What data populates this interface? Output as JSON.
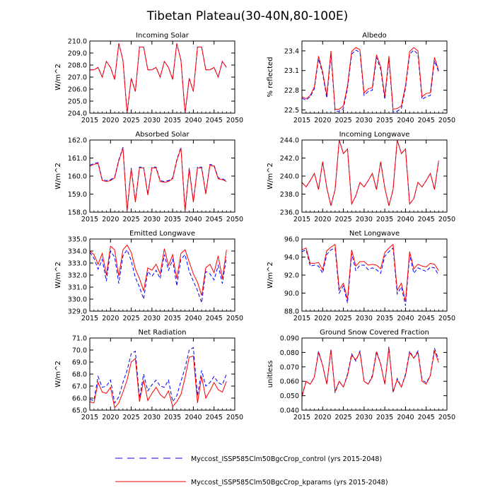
{
  "figure_title": "Tibetan Plateau(30-40N,80-100E)",
  "legend": {
    "control_label": "Myccost_ISSP585Clm50BgcCrop_control (yrs 2015-2048)",
    "kparams_label": "Myccost_ISSP585Clm50BgcCrop_kparams (yrs 2015-2048)"
  },
  "colors": {
    "control": "#0000ff",
    "kparams": "#ff0000",
    "axis": "#000000"
  },
  "chart_data": [
    {
      "type": "line",
      "title": "Incoming Solar",
      "ylabel": "W/m^2",
      "xlim": [
        2015,
        2050
      ],
      "xticks": [
        2015,
        2020,
        2025,
        2030,
        2035,
        2040,
        2045,
        2050
      ],
      "ylim": [
        204.0,
        210.0
      ],
      "yticks": [
        "204.0",
        "205.0",
        "206.0",
        "207.0",
        "208.0",
        "209.0",
        "210.0"
      ],
      "x": [
        2015,
        2016,
        2017,
        2018,
        2019,
        2020,
        2021,
        2022,
        2023,
        2024,
        2025,
        2026,
        2027,
        2028,
        2029,
        2030,
        2031,
        2032,
        2033,
        2034,
        2035,
        2036,
        2037,
        2038,
        2039,
        2040,
        2041,
        2042,
        2043,
        2044,
        2045,
        2046,
        2047,
        2048
      ],
      "series": [
        {
          "name": "control",
          "values": [
            207.6,
            207.6,
            207.8,
            207.0,
            208.3,
            207.8,
            206.8,
            209.8,
            208.4,
            204.0,
            206.9,
            205.8,
            209.5,
            209.5,
            207.6,
            207.6,
            207.8,
            207.0,
            208.3,
            207.8,
            206.8,
            209.8,
            208.4,
            204.0,
            206.9,
            205.8,
            209.5,
            209.5,
            207.6,
            207.6,
            207.8,
            207.0,
            208.3,
            207.8
          ]
        },
        {
          "name": "kparams",
          "values": [
            207.6,
            207.6,
            207.8,
            207.0,
            208.3,
            207.8,
            206.8,
            209.8,
            208.4,
            204.0,
            206.9,
            205.8,
            209.5,
            209.5,
            207.6,
            207.6,
            207.8,
            207.0,
            208.3,
            207.8,
            206.8,
            209.8,
            208.4,
            204.0,
            206.9,
            205.8,
            209.5,
            209.5,
            207.6,
            207.6,
            207.8,
            207.0,
            208.3,
            207.8
          ]
        }
      ]
    },
    {
      "type": "line",
      "title": "Albedo",
      "ylabel": "% reflected",
      "xlim": [
        2015,
        2050
      ],
      "xticks": [
        2015,
        2020,
        2025,
        2030,
        2035,
        2040,
        2045,
        2050
      ],
      "ylim": [
        22.45,
        23.55
      ],
      "yticks": [
        "22.5",
        "22.8",
        "23.1",
        "23.4"
      ],
      "x": [
        2015,
        2016,
        2017,
        2018,
        2019,
        2020,
        2021,
        2022,
        2023,
        2024,
        2025,
        2026,
        2027,
        2028,
        2029,
        2030,
        2031,
        2032,
        2033,
        2034,
        2035,
        2036,
        2037,
        2038,
        2039,
        2040,
        2041,
        2042,
        2043,
        2044,
        2045,
        2046,
        2047,
        2048
      ],
      "series": [
        {
          "name": "control",
          "values": [
            22.68,
            22.65,
            22.7,
            22.82,
            23.28,
            23.05,
            22.68,
            23.35,
            22.48,
            22.48,
            22.52,
            22.83,
            23.35,
            23.41,
            23.38,
            22.72,
            22.78,
            22.8,
            23.3,
            23.12,
            22.66,
            23.28,
            22.47,
            22.48,
            22.52,
            22.83,
            23.35,
            23.41,
            23.35,
            22.66,
            22.7,
            22.72,
            23.25,
            23.08
          ]
        },
        {
          "name": "kparams",
          "values": [
            22.7,
            22.67,
            22.72,
            22.85,
            23.32,
            23.08,
            22.72,
            23.4,
            22.51,
            22.51,
            22.56,
            22.87,
            23.39,
            23.45,
            23.42,
            22.76,
            22.82,
            22.84,
            23.34,
            23.16,
            22.7,
            23.32,
            22.51,
            22.52,
            22.56,
            22.87,
            23.39,
            23.45,
            23.4,
            22.7,
            22.75,
            22.76,
            23.3,
            23.1
          ]
        }
      ]
    },
    {
      "type": "line",
      "title": "Absorbed Solar",
      "ylabel": "W/m^2",
      "xlim": [
        2015,
        2050
      ],
      "xticks": [
        2015,
        2020,
        2025,
        2030,
        2035,
        2040,
        2045,
        2050
      ],
      "ylim": [
        158.0,
        162.0
      ],
      "yticks": [
        "158.0",
        "159.0",
        "160.0",
        "161.0",
        "162.0"
      ],
      "x": [
        2015,
        2016,
        2017,
        2018,
        2019,
        2020,
        2021,
        2022,
        2023,
        2024,
        2025,
        2026,
        2027,
        2028,
        2029,
        2030,
        2031,
        2032,
        2033,
        2034,
        2035,
        2036,
        2037,
        2038,
        2039,
        2040,
        2041,
        2042,
        2043,
        2044,
        2045,
        2046,
        2047,
        2048
      ],
      "series": [
        {
          "name": "control",
          "values": [
            160.6,
            160.7,
            160.75,
            159.8,
            159.75,
            159.8,
            159.95,
            160.9,
            161.6,
            158.1,
            160.45,
            158.6,
            160.5,
            160.5,
            159.0,
            160.5,
            160.5,
            159.75,
            159.7,
            159.75,
            159.9,
            160.9,
            161.6,
            158.1,
            160.45,
            158.6,
            160.5,
            160.5,
            159.05,
            160.65,
            160.6,
            159.9,
            159.85,
            159.75
          ]
        },
        {
          "name": "kparams",
          "values": [
            160.55,
            160.65,
            160.7,
            159.75,
            159.7,
            159.75,
            159.9,
            160.85,
            161.55,
            158.05,
            160.4,
            158.55,
            160.45,
            160.45,
            158.95,
            160.45,
            160.45,
            159.7,
            159.65,
            159.7,
            159.85,
            160.85,
            161.55,
            158.05,
            160.4,
            158.55,
            160.45,
            160.45,
            159.0,
            160.6,
            160.55,
            159.85,
            159.8,
            159.7
          ]
        }
      ]
    },
    {
      "type": "line",
      "title": "Incoming Longwave",
      "ylabel": "W/m^2",
      "xlim": [
        2015,
        2050
      ],
      "xticks": [
        2015,
        2020,
        2025,
        2030,
        2035,
        2040,
        2045,
        2050
      ],
      "ylim": [
        236.0,
        244.0
      ],
      "yticks": [
        "236.0",
        "238.0",
        "240.0",
        "242.0",
        "244.0"
      ],
      "x": [
        2015,
        2016,
        2017,
        2018,
        2019,
        2020,
        2021,
        2022,
        2023,
        2024,
        2025,
        2026,
        2027,
        2028,
        2029,
        2030,
        2031,
        2032,
        2033,
        2034,
        2035,
        2036,
        2037,
        2038,
        2039,
        2040,
        2041,
        2042,
        2043,
        2044,
        2045,
        2046,
        2047,
        2048
      ],
      "series": [
        {
          "name": "control",
          "values": [
            239.3,
            238.8,
            239.5,
            240.3,
            238.5,
            241.6,
            238.7,
            236.7,
            238.5,
            244.0,
            242.5,
            243.0,
            236.9,
            237.8,
            239.3,
            238.8,
            239.5,
            240.3,
            238.5,
            241.6,
            238.7,
            236.7,
            238.5,
            244.0,
            242.5,
            243.0,
            236.9,
            237.5,
            239.3,
            238.8,
            239.5,
            240.3,
            238.5,
            241.7
          ]
        },
        {
          "name": "kparams",
          "values": [
            239.3,
            238.8,
            239.5,
            240.3,
            238.5,
            241.6,
            238.7,
            236.7,
            238.5,
            244.0,
            242.5,
            243.0,
            236.9,
            237.8,
            239.3,
            238.8,
            239.5,
            240.3,
            238.5,
            241.6,
            238.7,
            236.7,
            238.5,
            244.0,
            242.5,
            243.0,
            236.9,
            237.5,
            239.3,
            238.8,
            239.5,
            240.3,
            238.5,
            241.7
          ]
        }
      ]
    },
    {
      "type": "line",
      "title": "Emitted Longwave",
      "ylabel": "W/m^2",
      "xlim": [
        2015,
        2050
      ],
      "xticks": [
        2015,
        2020,
        2025,
        2030,
        2035,
        2040,
        2045,
        2050
      ],
      "ylim": [
        329.0,
        335.0
      ],
      "yticks": [
        "329.0",
        "330.0",
        "331.0",
        "332.0",
        "333.0",
        "334.0",
        "335.0"
      ],
      "x": [
        2015,
        2016,
        2017,
        2018,
        2019,
        2020,
        2021,
        2022,
        2023,
        2024,
        2025,
        2026,
        2027,
        2028,
        2029,
        2030,
        2031,
        2032,
        2033,
        2034,
        2035,
        2036,
        2037,
        2038,
        2039,
        2040,
        2041,
        2042,
        2043,
        2044,
        2045,
        2046,
        2047,
        2048
      ],
      "series": [
        {
          "name": "control",
          "values": [
            333.9,
            333.4,
            332.5,
            333.3,
            331.5,
            334.0,
            333.5,
            331.3,
            333.6,
            334.1,
            333.2,
            331.8,
            331.0,
            330.0,
            332.3,
            331.9,
            332.4,
            331.7,
            333.7,
            332.4,
            333.3,
            331.1,
            333.3,
            333.7,
            332.3,
            331.5,
            330.7,
            329.7,
            332.3,
            332.1,
            331.6,
            332.8,
            331.3,
            333.5
          ]
        },
        {
          "name": "kparams",
          "values": [
            334.0,
            333.7,
            332.9,
            333.8,
            332.0,
            334.4,
            334.1,
            331.9,
            334.1,
            334.5,
            333.9,
            332.5,
            331.7,
            330.7,
            332.6,
            332.4,
            332.9,
            332.1,
            334.2,
            332.8,
            333.7,
            331.7,
            333.8,
            334.1,
            333.1,
            332.1,
            331.4,
            330.3,
            332.6,
            332.9,
            332.2,
            333.6,
            331.7,
            334.1
          ]
        }
      ]
    },
    {
      "type": "line",
      "title": "Net Longwave",
      "ylabel": "W/m^2",
      "xlim": [
        2015,
        2050
      ],
      "xticks": [
        2015,
        2020,
        2025,
        2030,
        2035,
        2040,
        2045,
        2050
      ],
      "ylim": [
        88.0,
        96.0
      ],
      "yticks": [
        "88.0",
        "90.0",
        "92.0",
        "94.0",
        "96.0"
      ],
      "x": [
        2015,
        2016,
        2017,
        2018,
        2019,
        2020,
        2021,
        2022,
        2023,
        2024,
        2025,
        2026,
        2027,
        2028,
        2029,
        2030,
        2031,
        2032,
        2033,
        2034,
        2035,
        2036,
        2037,
        2038,
        2039,
        2040,
        2041,
        2042,
        2043,
        2044,
        2045,
        2046,
        2047,
        2048
      ],
      "series": [
        {
          "name": "control",
          "values": [
            94.6,
            94.8,
            93.0,
            93.1,
            93.0,
            92.2,
            94.3,
            94.8,
            95.0,
            90.0,
            90.8,
            88.9,
            94.4,
            92.5,
            93.1,
            93.1,
            92.6,
            92.8,
            92.6,
            92.2,
            94.1,
            94.6,
            95.0,
            89.9,
            90.7,
            88.6,
            94.3,
            92.2,
            92.8,
            92.6,
            92.4,
            92.9,
            92.8,
            92.0
          ]
        },
        {
          "name": "kparams",
          "values": [
            94.8,
            95.0,
            93.3,
            93.3,
            93.4,
            92.6,
            94.7,
            95.1,
            95.4,
            90.4,
            91.1,
            89.3,
            94.8,
            93.0,
            93.5,
            93.5,
            93.1,
            93.2,
            93.1,
            92.7,
            94.5,
            95.0,
            95.4,
            90.3,
            91.1,
            89.1,
            94.6,
            92.7,
            93.2,
            93.0,
            92.9,
            93.3,
            93.2,
            92.5
          ]
        }
      ]
    },
    {
      "type": "line",
      "title": "Net Radiation",
      "ylabel": "W/m^2",
      "xlim": [
        2015,
        2050
      ],
      "xticks": [
        2015,
        2020,
        2025,
        2030,
        2035,
        2040,
        2045,
        2050
      ],
      "ylim": [
        65.0,
        71.0
      ],
      "yticks": [
        "65.0",
        "66.0",
        "67.0",
        "68.0",
        "69.0",
        "70.0",
        "71.0"
      ],
      "x": [
        2015,
        2016,
        2017,
        2018,
        2019,
        2020,
        2021,
        2022,
        2023,
        2024,
        2025,
        2026,
        2027,
        2028,
        2029,
        2030,
        2031,
        2032,
        2033,
        2034,
        2035,
        2036,
        2037,
        2038,
        2039,
        2040,
        2041,
        2042,
        2043,
        2044,
        2045,
        2046,
        2047,
        2048
      ],
      "series": [
        {
          "name": "control",
          "values": [
            65.9,
            65.8,
            67.8,
            66.9,
            67.0,
            67.5,
            65.6,
            66.1,
            67.3,
            68.3,
            69.7,
            69.9,
            66.0,
            68.0,
            66.6,
            67.1,
            67.5,
            67.0,
            66.9,
            67.5,
            65.7,
            66.2,
            67.4,
            68.5,
            70.0,
            70.2,
            66.2,
            68.3,
            67.0,
            67.3,
            67.8,
            67.3,
            67.1,
            68.0
          ]
        },
        {
          "name": "kparams",
          "values": [
            65.7,
            65.6,
            67.3,
            66.5,
            66.4,
            66.9,
            65.2,
            65.6,
            66.5,
            67.5,
            69.0,
            69.3,
            65.7,
            67.5,
            65.8,
            66.4,
            66.9,
            66.3,
            66.0,
            66.6,
            65.3,
            65.7,
            66.3,
            67.7,
            69.4,
            69.5,
            65.6,
            67.8,
            66.0,
            66.6,
            67.3,
            66.7,
            66.5,
            67.4
          ]
        }
      ]
    },
    {
      "type": "line",
      "title": "Ground Snow Covered Fraction",
      "ylabel": "unitless",
      "xlim": [
        2015,
        2050
      ],
      "xticks": [
        2015,
        2020,
        2025,
        2030,
        2035,
        2040,
        2045,
        2050
      ],
      "ylim": [
        0.04,
        0.09
      ],
      "yticks": [
        "0.040",
        "0.050",
        "0.060",
        "0.070",
        "0.080",
        "0.090"
      ],
      "x": [
        2015,
        2016,
        2017,
        2018,
        2019,
        2020,
        2021,
        2022,
        2023,
        2024,
        2025,
        2026,
        2027,
        2028,
        2029,
        2030,
        2031,
        2032,
        2033,
        2034,
        2035,
        2036,
        2037,
        2038,
        2039,
        2040,
        2041,
        2042,
        2043,
        2044,
        2045,
        2046,
        2047,
        2048
      ],
      "series": [
        {
          "name": "control",
          "values": [
            0.05,
            0.06,
            0.058,
            0.063,
            0.081,
            0.071,
            0.058,
            0.082,
            0.052,
            0.06,
            0.056,
            0.065,
            0.079,
            0.074,
            0.081,
            0.06,
            0.058,
            0.064,
            0.081,
            0.072,
            0.058,
            0.084,
            0.052,
            0.062,
            0.056,
            0.065,
            0.081,
            0.076,
            0.081,
            0.061,
            0.059,
            0.064,
            0.083,
            0.075
          ]
        },
        {
          "name": "kparams",
          "values": [
            0.049,
            0.06,
            0.058,
            0.063,
            0.08,
            0.071,
            0.058,
            0.082,
            0.053,
            0.06,
            0.056,
            0.064,
            0.078,
            0.075,
            0.08,
            0.06,
            0.058,
            0.063,
            0.08,
            0.072,
            0.058,
            0.083,
            0.053,
            0.061,
            0.056,
            0.064,
            0.08,
            0.076,
            0.08,
            0.06,
            0.058,
            0.064,
            0.081,
            0.073
          ]
        }
      ]
    }
  ]
}
